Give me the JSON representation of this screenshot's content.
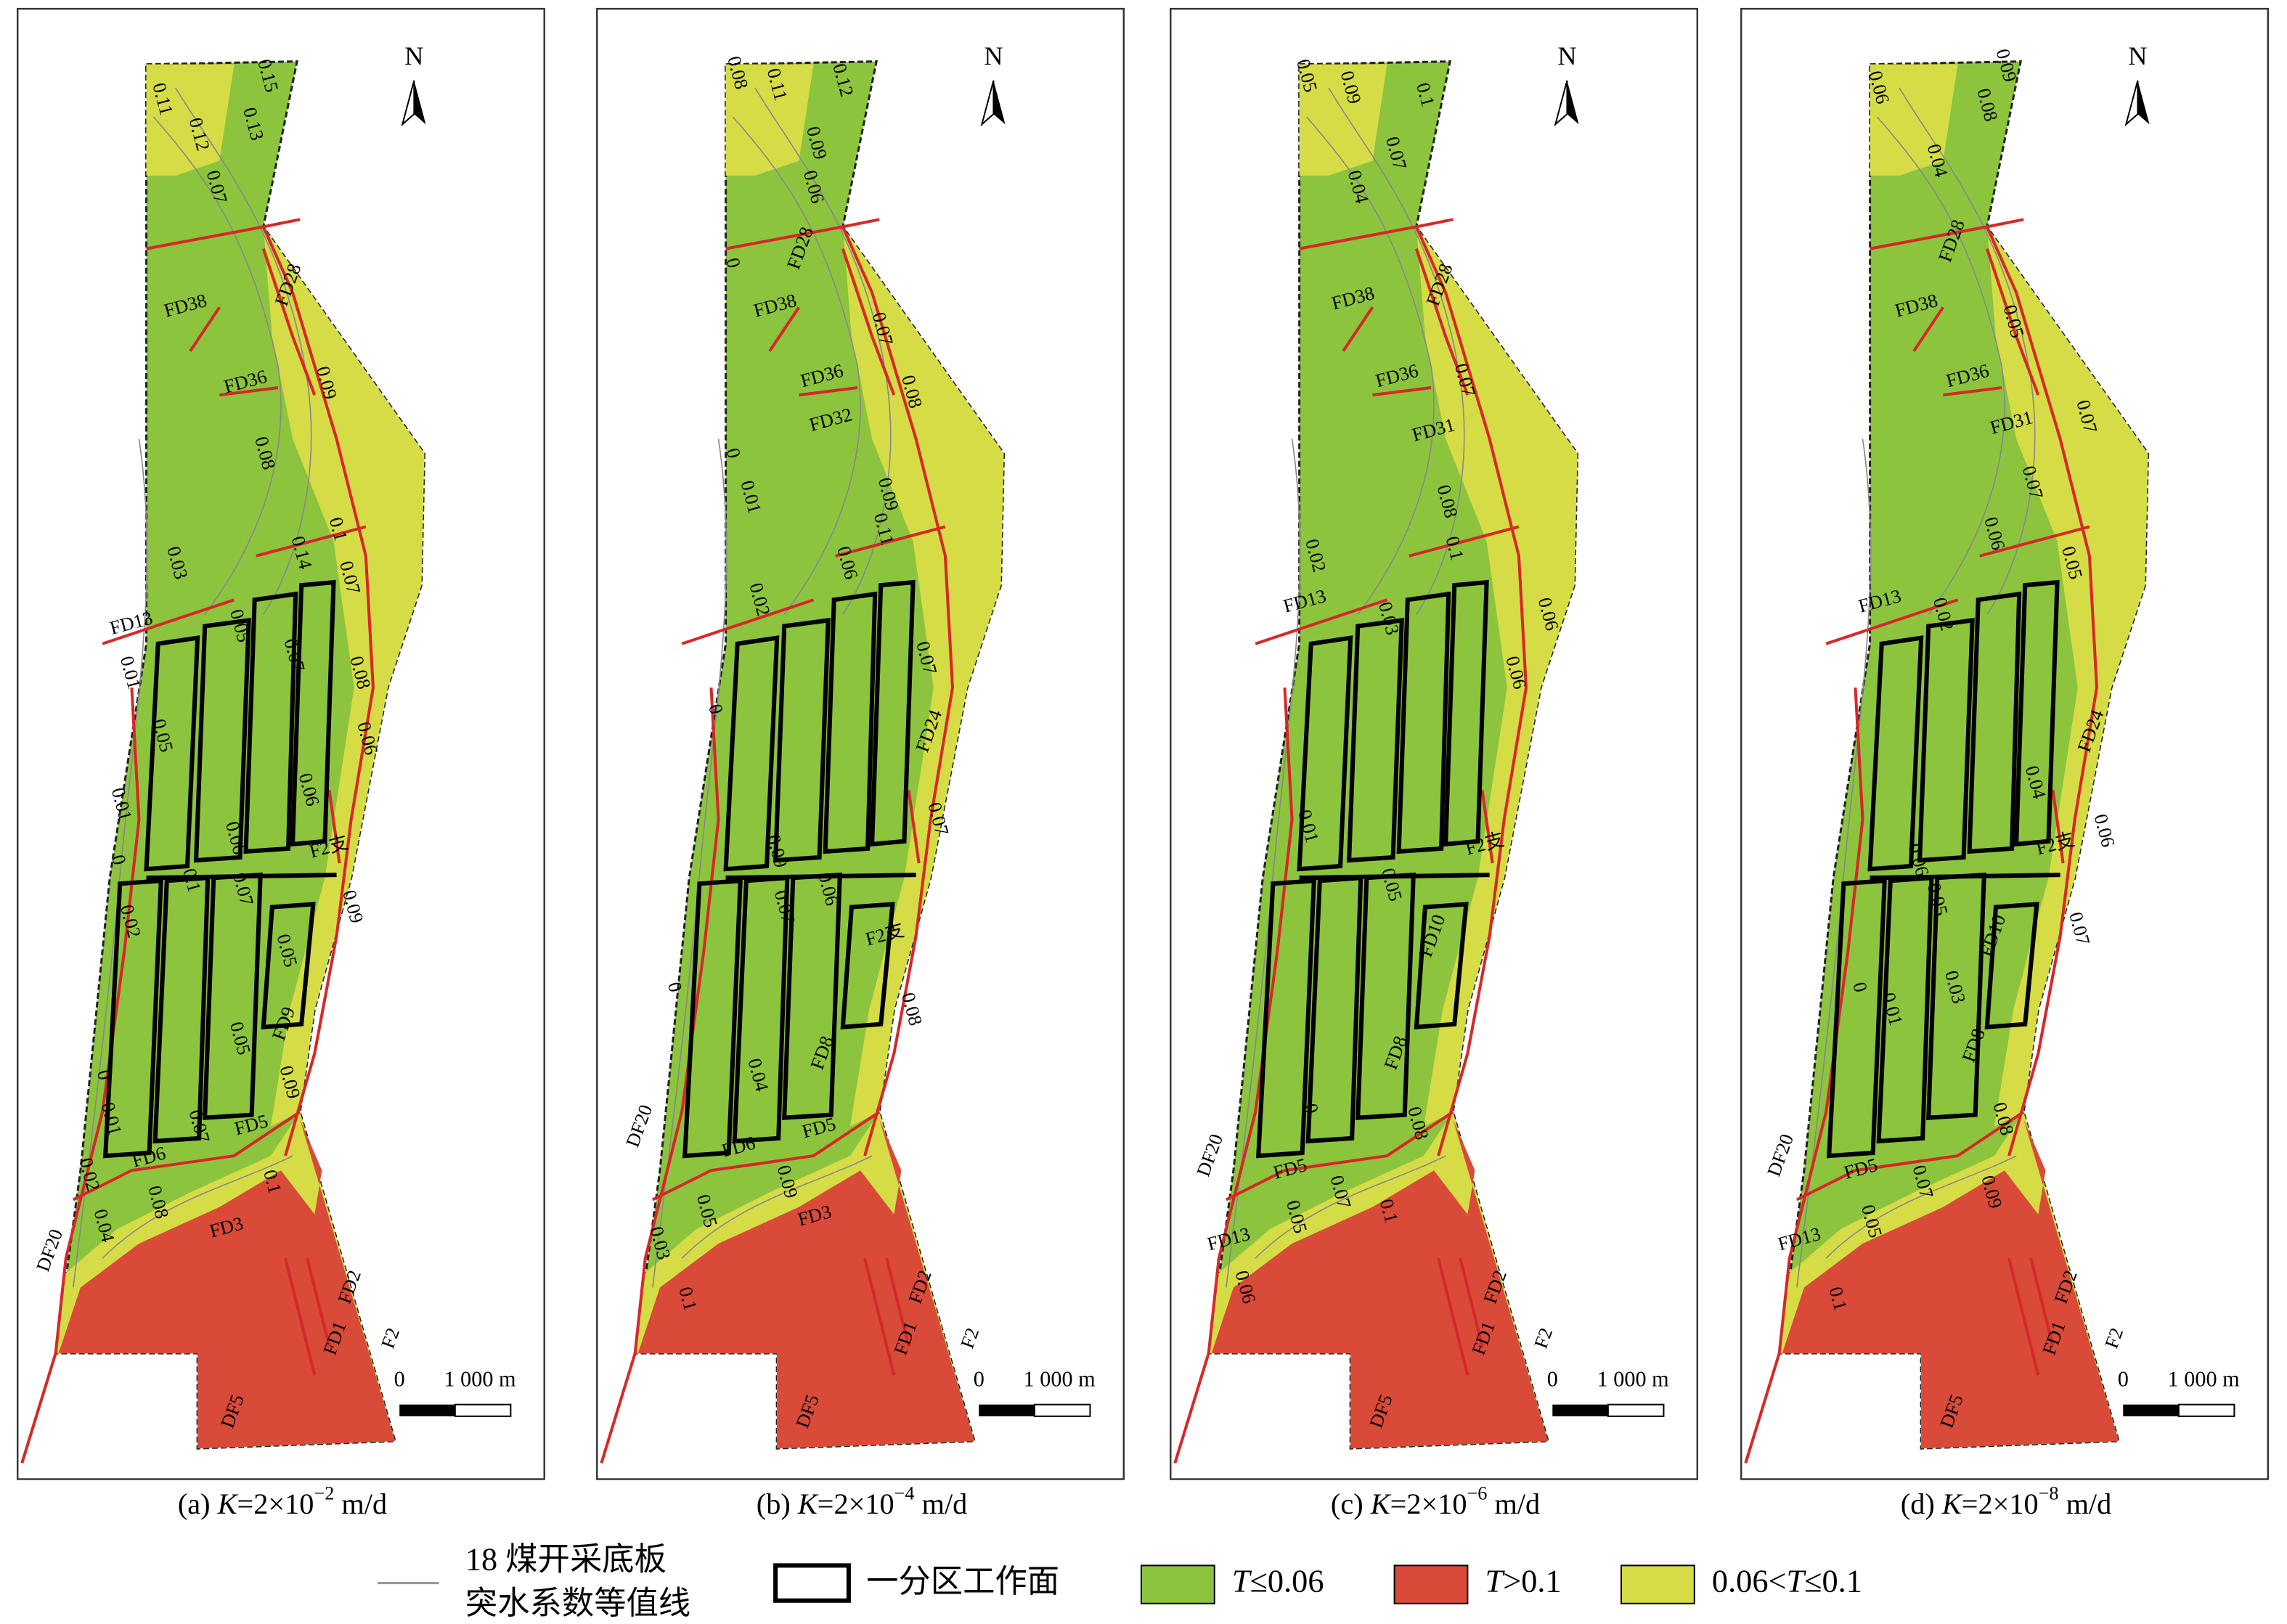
{
  "north_label": "N",
  "scale_bar": [
    "0",
    "1 000 m"
  ],
  "panels": [
    {
      "caption": {
        "prefix": "(a) ",
        "variable": "K",
        "base": "=2×10",
        "exponent": "−2",
        "unit": " m/d"
      },
      "labels": [
        "0.15",
        "0.11",
        "0.12",
        "0.13",
        "0.07",
        "FD28",
        "FD38",
        "FD36",
        "0.09",
        "0.08",
        "0.1",
        "0.14",
        "0.07",
        "0.03",
        "FD13",
        "0.05",
        "0.07",
        "0.08",
        "0.01",
        "0.05",
        "0.06",
        "0.06",
        "0.01",
        "F2支",
        "0",
        "0.06",
        "0.1",
        "0.07",
        "0.09",
        "0.02",
        "0.05",
        "FD9",
        "0.05",
        "0",
        "0.01",
        "0.07",
        "FD5",
        "0.09",
        "FD6",
        "0.02",
        "0.1",
        "0.08",
        "0.04",
        "FD3",
        "DF20",
        "FD2",
        "FD1",
        "F2",
        "DF5"
      ]
    },
    {
      "caption": {
        "prefix": "(b) ",
        "variable": "K",
        "base": "=2×10",
        "exponent": "−4",
        "unit": " m/d"
      },
      "labels": [
        "0.08",
        "0.11",
        "0.12",
        "0.09",
        "0.06",
        "FD28",
        "0",
        "FD38",
        "0.07",
        "FD36",
        "0.08",
        "FD32",
        "0",
        "0.01",
        "0.09",
        "0.11",
        "0.06",
        "0.02",
        "0.07",
        "0",
        "FD24",
        "0.07",
        "0.09",
        "0.06",
        "0.07",
        "F2支",
        "0",
        "0.08",
        "FD8",
        "0.04",
        "FD5",
        "DF20",
        "FD6",
        "0.09",
        "0.05",
        "FD3",
        "0.03",
        "FD2",
        "0.1",
        "FD1",
        "F2",
        "DF5"
      ]
    },
    {
      "caption": {
        "prefix": "(c) ",
        "variable": "K",
        "base": "=2×10",
        "exponent": "−6",
        "unit": " m/d"
      },
      "labels": [
        "0.05",
        "0.09",
        "0.1",
        "0.07",
        "0.04",
        "FD38",
        "FD28",
        "FD36",
        "0.07",
        "FD31",
        "0.08",
        "0.1",
        "0.02",
        "FD13",
        "0.03",
        "0.06",
        "0.06",
        "0.01",
        "F2支",
        "0.05",
        "FD10",
        "FD8",
        "0",
        "0.08",
        "DF20",
        "FD5",
        "0.07",
        "0.05",
        "0.1",
        "FD13",
        "0.06",
        "FD2",
        "FD1",
        "F2",
        "DF5"
      ]
    },
    {
      "caption": {
        "prefix": "(d) ",
        "variable": "K",
        "base": "=2×10",
        "exponent": "−8",
        "unit": " m/d"
      },
      "labels": [
        "0.09",
        "0.06",
        "0.08",
        "0.04",
        "FD28",
        "FD38",
        "0.05",
        "FD36",
        "0.07",
        "FD31",
        "0.07",
        "0.06",
        "0.05",
        "FD13",
        "0.02",
        "FD24",
        "0.04",
        "0.06",
        "F2支",
        "0.06",
        "0.05",
        "0.07",
        "FD10",
        "0",
        "0.01",
        "0.03",
        "FD8",
        "0.08",
        "DF20",
        "FD5",
        "0.07",
        "0.09",
        "0.05",
        "FD13",
        "0.1",
        "FD2",
        "FD1",
        "F2",
        "DF5"
      ]
    }
  ],
  "legend": {
    "contour": [
      "18 煤开采底板",
      "突水系数等值线"
    ],
    "workface": "一分区工作面",
    "low": {
      "variable": "T",
      "relation": "≤0.06"
    },
    "high": {
      "variable": "T",
      "relation": ">0.1"
    },
    "mid": {
      "lower": "0.06<",
      "variable": "T",
      "relation": "≤0.1"
    }
  }
}
